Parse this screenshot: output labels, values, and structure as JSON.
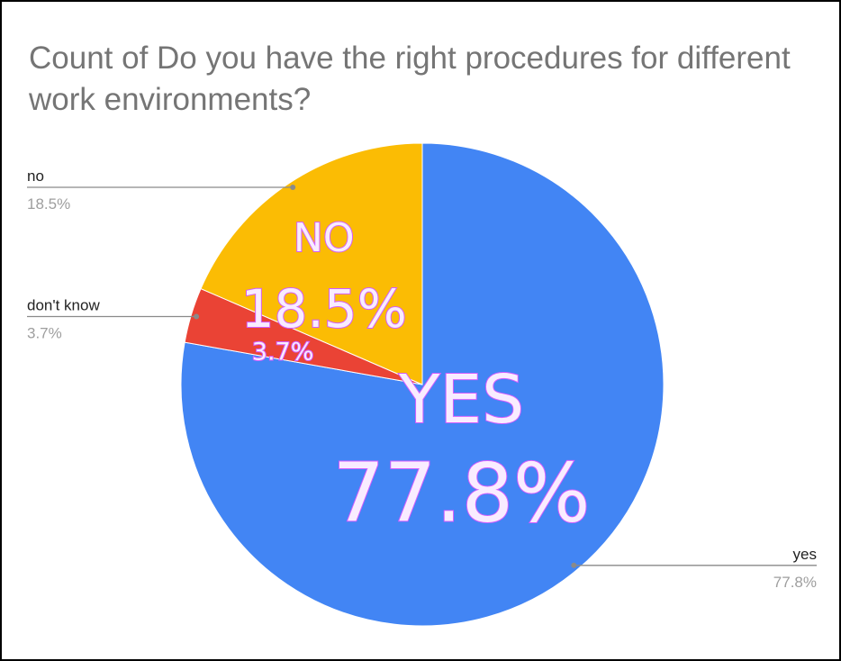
{
  "chart_data": {
    "type": "pie",
    "title": "Count of Do you have the right procedures for different work environments?",
    "slices": [
      {
        "label": "yes",
        "value": 77.8,
        "display": "77.8%",
        "color": "#4285F4"
      },
      {
        "label": "don't know",
        "value": 3.7,
        "display": "3.7%",
        "color": "#EA4335"
      },
      {
        "label": "no",
        "value": 18.5,
        "display": "18.5%",
        "color": "#FBBC04"
      }
    ],
    "overlay_labels": [
      {
        "slice": "no",
        "lines": [
          "NO",
          "18.5%"
        ]
      },
      {
        "slice": "don't know",
        "lines": [
          "3.7%"
        ]
      },
      {
        "slice": "yes",
        "lines": [
          "YES",
          "77.8%"
        ]
      }
    ],
    "legend": "callout lines"
  }
}
